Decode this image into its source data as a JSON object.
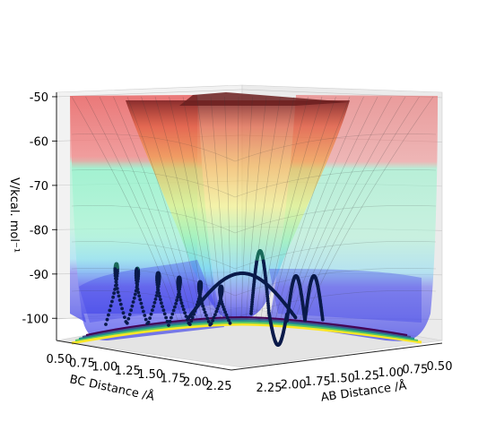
{
  "chart_data": {
    "type": "surface3d",
    "title": "",
    "zlabel": "V/kcal. mol⁻¹",
    "xlabel": "AB Distance /Å",
    "ylabel": "BC Distance /Å",
    "z_ticks": [
      "-50",
      "-60",
      "-70",
      "-80",
      "-90",
      "-100"
    ],
    "z_values": [
      -50,
      -60,
      -70,
      -80,
      -90,
      -100
    ],
    "zlim": [
      -105,
      -49
    ],
    "ab_ticks": [
      "2.25",
      "2.00",
      "1.75",
      "1.50",
      "1.25",
      "1.00",
      "0.75",
      "0.50"
    ],
    "ab_values": [
      2.25,
      2.0,
      1.75,
      1.5,
      1.25,
      1.0,
      0.75,
      0.5
    ],
    "bc_ticks": [
      "0.50",
      "0.75",
      "1.00",
      "1.25",
      "1.50",
      "1.75",
      "2.00",
      "2.25"
    ],
    "bc_values": [
      0.5,
      0.75,
      1.0,
      1.25,
      1.5,
      1.75,
      2.0,
      2.25
    ],
    "surface_colormap": "jet",
    "contour_colormap": "viridis",
    "trajectory_color": "#0a1a4a",
    "grid": true,
    "colors": {
      "band_red": "#ef6a6a",
      "band_orange": "#f3a15a",
      "band_yellow": "#f1f07a",
      "band_green": "#8df0c6",
      "band_blue": "#5a5cf0",
      "ridge_dark": "#6b1f1f"
    }
  }
}
